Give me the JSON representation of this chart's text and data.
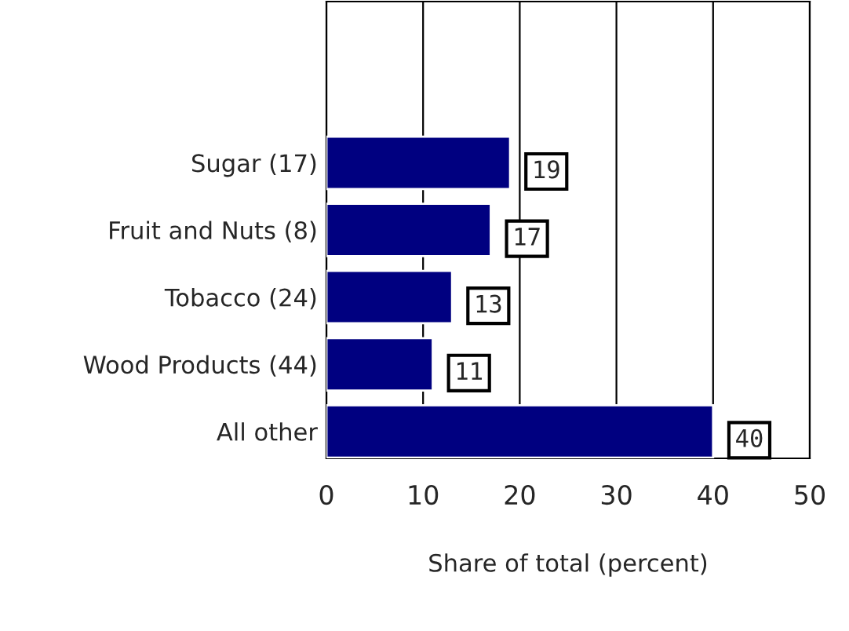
{
  "chart_data": {
    "type": "bar",
    "orientation": "horizontal",
    "xlabel": "Share of total (percent)",
    "categories": [
      "Sugar (17)",
      "Fruit and Nuts (8)",
      "Tobacco (24)",
      "Wood Products (44)",
      "All other"
    ],
    "values": [
      19,
      17,
      13,
      11,
      40
    ],
    "color": "#000080",
    "xlim": [
      0,
      50
    ],
    "xticks": [
      0,
      10,
      20,
      30,
      40,
      50
    ],
    "grid": "x",
    "data_labels": true
  }
}
